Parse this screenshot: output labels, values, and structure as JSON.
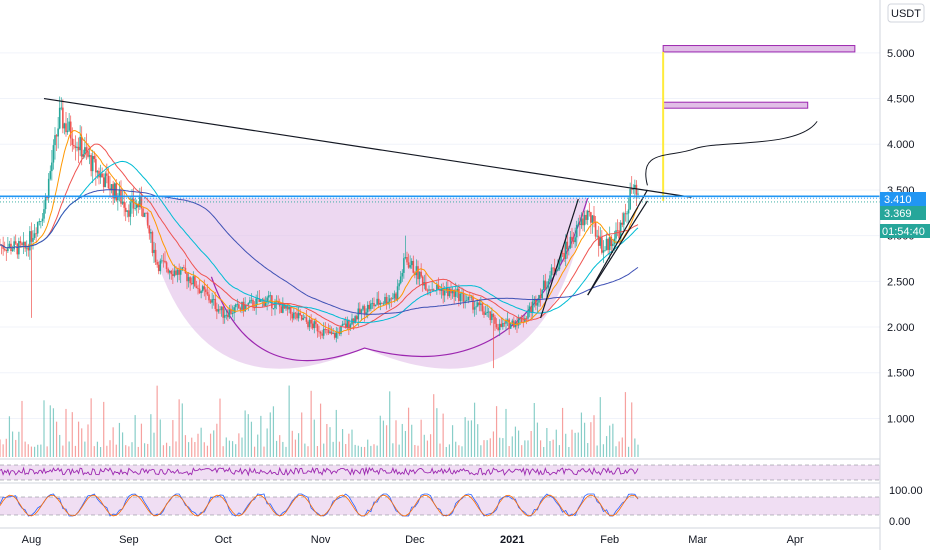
{
  "currency": "USDT",
  "colors": {
    "up": "#26a69a",
    "down": "#ef5350",
    "fill_purple": "#e1bee7",
    "line_black": "#131722",
    "price_blue": "#2196f3",
    "badge_teal": "#26a69a",
    "yellow": "#ffeb3b",
    "oscillator_purple": "#9c27b0",
    "oscillator_band": "#e1bee7"
  },
  "badges": {
    "last_price": "3.410",
    "second_price": "3.369",
    "countdown": "01:54:40"
  },
  "chart_data": {
    "type": "candlestick",
    "title": "",
    "x_labels": [
      "Aug",
      "Sep",
      "Oct",
      "Nov",
      "Dec",
      "2021",
      "Feb",
      "Mar",
      "Apr"
    ],
    "y_ticks": [
      "5.000",
      "4.500",
      "4.000",
      "3.500",
      "3.000",
      "2.500",
      "2.000",
      "1.500",
      "1.000"
    ],
    "ylim": [
      0.6,
      5.25
    ],
    "price_series": {
      "name": "",
      "anchor_points": [
        {
          "date": "2020-07-22",
          "price": 2.9
        },
        {
          "date": "2020-07-30",
          "price": 2.85
        },
        {
          "date": "2020-08-05",
          "price": 3.3
        },
        {
          "date": "2020-08-10",
          "price": 4.3
        },
        {
          "date": "2020-08-14",
          "price": 4.1
        },
        {
          "date": "2020-08-22",
          "price": 3.7
        },
        {
          "date": "2020-09-01",
          "price": 3.3
        },
        {
          "date": "2020-09-05",
          "price": 3.35
        },
        {
          "date": "2020-09-10",
          "price": 2.7
        },
        {
          "date": "2020-09-20",
          "price": 2.55
        },
        {
          "date": "2020-10-01",
          "price": 2.15
        },
        {
          "date": "2020-10-15",
          "price": 2.3
        },
        {
          "date": "2020-10-25",
          "price": 2.1
        },
        {
          "date": "2020-11-05",
          "price": 1.9
        },
        {
          "date": "2020-11-15",
          "price": 2.2
        },
        {
          "date": "2020-11-25",
          "price": 2.35
        },
        {
          "date": "2020-11-28",
          "price": 2.75
        },
        {
          "date": "2020-12-05",
          "price": 2.45
        },
        {
          "date": "2020-12-15",
          "price": 2.35
        },
        {
          "date": "2020-12-22",
          "price": 2.2
        },
        {
          "date": "2020-12-28",
          "price": 2.0
        },
        {
          "date": "2021-01-05",
          "price": 2.1
        },
        {
          "date": "2021-01-12",
          "price": 2.5
        },
        {
          "date": "2021-01-18",
          "price": 2.85
        },
        {
          "date": "2021-01-25",
          "price": 3.25
        },
        {
          "date": "2021-01-30",
          "price": 2.85
        },
        {
          "date": "2021-02-05",
          "price": 3.1
        },
        {
          "date": "2021-02-08",
          "price": 3.5
        },
        {
          "date": "2021-02-10",
          "price": 3.41
        }
      ]
    },
    "annotations": {
      "descending_resistance": {
        "from": {
          "date": "2020-08-05",
          "price": 4.5
        },
        "to": {
          "date": "2021-02-27",
          "price": 3.42
        }
      },
      "horizontal_level": {
        "price": 3.43
      },
      "rising_wedge_lines": [
        {
          "from": {
            "date": "2021-01-25",
            "price": 2.35
          },
          "to": {
            "date": "2021-02-13",
            "price": 3.5
          }
        },
        {
          "from": {
            "date": "2021-01-10",
            "price": 2.1
          },
          "to": {
            "date": "2021-01-22",
            "price": 3.4
          }
        }
      ],
      "cup_bottom_price": 1.77,
      "target_boxes": [
        {
          "top": 5.08,
          "bottom": 5.01,
          "from_date": "2021-02-18",
          "to_date": "2021-04-20"
        },
        {
          "top": 4.46,
          "bottom": 4.4,
          "from_date": "2021-02-18",
          "to_date": "2021-04-05"
        }
      ],
      "target_line_date": "2021-02-18"
    }
  }
}
